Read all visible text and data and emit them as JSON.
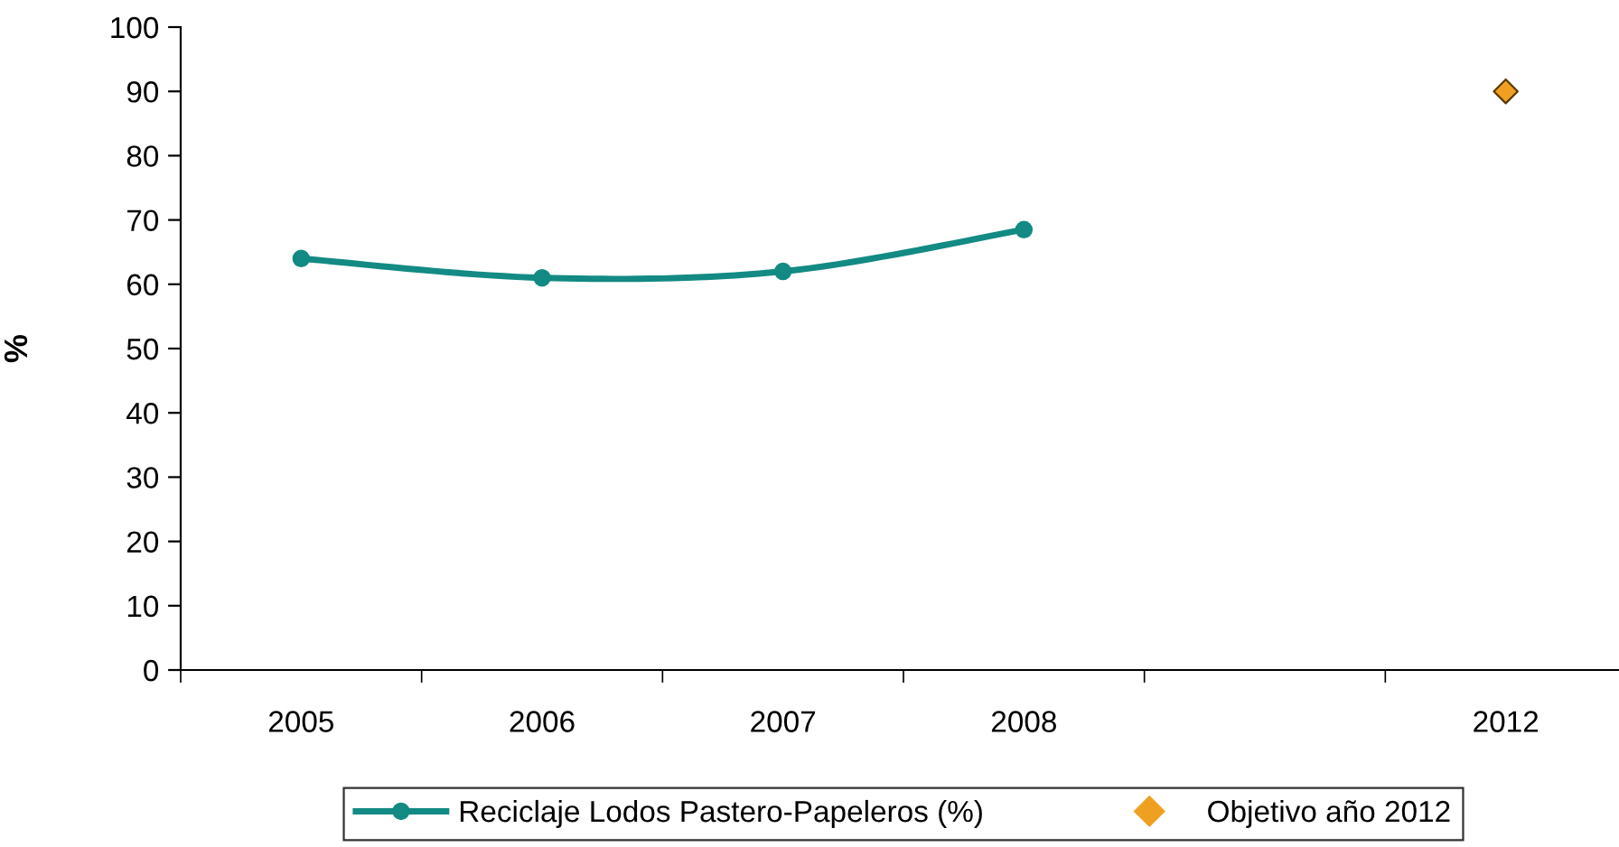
{
  "chart_data": {
    "type": "line",
    "ylabel": "%",
    "categories": [
      "2005",
      "2006",
      "2007",
      "2008",
      null,
      "2012"
    ],
    "series": [
      {
        "name": "Reciclaje Lodos Pastero-Papeleros (%)",
        "color": "#138a84",
        "marker": "circle",
        "values": [
          64,
          61,
          62,
          68.5,
          null,
          null
        ]
      },
      {
        "name": "Objetivo año 2012",
        "color": "#f0a020",
        "type": "scatter",
        "marker": "diamond",
        "values": [
          null,
          null,
          null,
          null,
          null,
          90
        ]
      }
    ],
    "ylim": [
      0,
      100
    ],
    "yticks": [
      0,
      10,
      20,
      30,
      40,
      50,
      60,
      70,
      80,
      90,
      100
    ],
    "grid": false,
    "legend": "bottom"
  }
}
